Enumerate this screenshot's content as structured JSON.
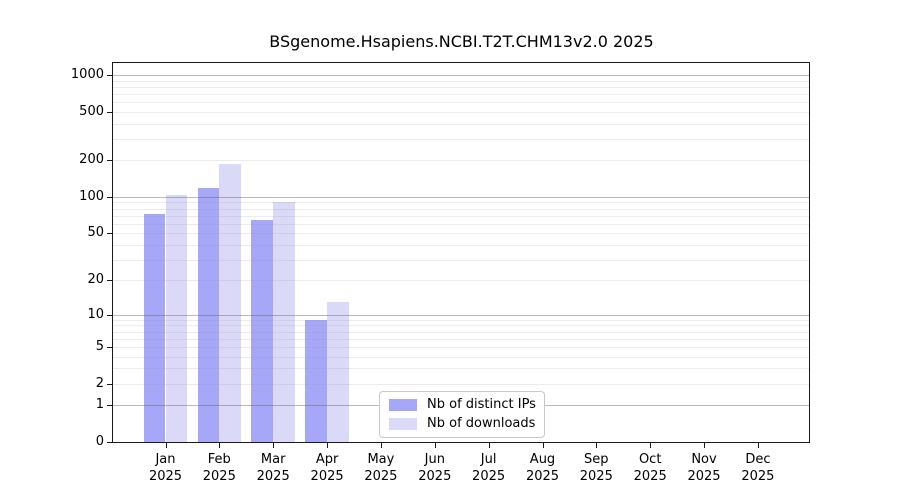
{
  "chart_data": {
    "type": "bar",
    "title": "BSgenome.Hsapiens.NCBI.T2T.CHM13v2.0 2025",
    "xlabel": "",
    "ylabel": "",
    "year": "2025",
    "categories": [
      "Jan",
      "Feb",
      "Mar",
      "Apr",
      "May",
      "Jun",
      "Jul",
      "Aug",
      "Sep",
      "Oct",
      "Nov",
      "Dec"
    ],
    "series": [
      {
        "name": "Nb of distinct IPs",
        "color": "#a7a7f7",
        "values": [
          72,
          118,
          64,
          9,
          0,
          0,
          0,
          0,
          0,
          0,
          0,
          0
        ]
      },
      {
        "name": "Nb of downloads",
        "color": "#dadaf8",
        "values": [
          104,
          186,
          90,
          13,
          0,
          0,
          0,
          0,
          0,
          0,
          0,
          0
        ]
      }
    ],
    "y_scale": "log1p",
    "y_ticks": [
      1000,
      500,
      200,
      100,
      50,
      20,
      10,
      5,
      2,
      1,
      0
    ],
    "ylim": [
      0,
      1250
    ],
    "grid": {
      "major_lines": [
        1,
        10,
        100,
        1000
      ],
      "minor_multipliers": [
        2,
        3,
        4,
        5,
        6,
        7,
        8,
        9
      ],
      "minor_decades": [
        1,
        10,
        100
      ]
    },
    "legend": {
      "position": "lower-center",
      "frame": true
    }
  }
}
